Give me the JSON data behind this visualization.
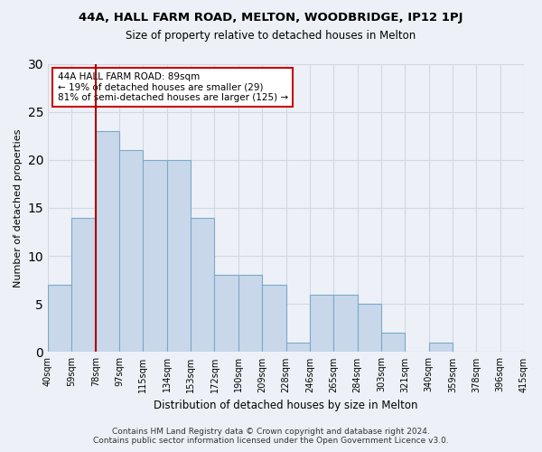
{
  "title": "44A, HALL FARM ROAD, MELTON, WOODBRIDGE, IP12 1PJ",
  "subtitle": "Size of property relative to detached houses in Melton",
  "xlabel": "Distribution of detached houses by size in Melton",
  "ylabel": "Number of detached properties",
  "bar_values": [
    7,
    14,
    23,
    21,
    20,
    20,
    14,
    8,
    8,
    7,
    1,
    6,
    6,
    5,
    2,
    0,
    1,
    0,
    0,
    0
  ],
  "bar_labels": [
    "40sqm",
    "59sqm",
    "78sqm",
    "97sqm",
    "115sqm",
    "134sqm",
    "153sqm",
    "172sqm",
    "190sqm",
    "209sqm",
    "228sqm",
    "246sqm",
    "265sqm",
    "284sqm",
    "303sqm",
    "321sqm",
    "340sqm",
    "359sqm",
    "378sqm",
    "396sqm",
    "415sqm"
  ],
  "bar_color": "#c8d8ea",
  "bar_edge_color": "#7aaac8",
  "grid_color": "#d0d8e4",
  "background_color": "#edf1f7",
  "vline_color": "#aa0000",
  "annotation_text": "44A HALL FARM ROAD: 89sqm\n← 19% of detached houses are smaller (29)\n81% of semi-detached houses are larger (125) →",
  "annotation_box_color": "#ffffff",
  "annotation_box_edge": "#cc0000",
  "ylim": [
    0,
    30
  ],
  "yticks": [
    0,
    5,
    10,
    15,
    20,
    25,
    30
  ],
  "footer": "Contains HM Land Registry data © Crown copyright and database right 2024.\nContains public sector information licensed under the Open Government Licence v3.0.",
  "figsize": [
    6.0,
    5.0
  ],
  "dpi": 100
}
